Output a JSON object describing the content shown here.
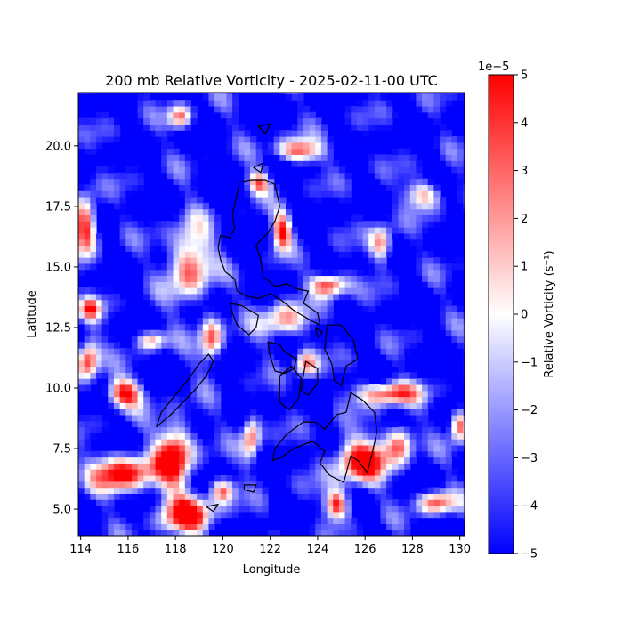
{
  "title": "200 mb Relative Vorticity - 2025-02-11-00 UTC",
  "xlabel": "Longitude",
  "ylabel": "Latitude",
  "x_ticks": [
    114,
    116,
    118,
    120,
    122,
    124,
    126,
    128,
    130
  ],
  "y_ticks": [
    5.0,
    7.5,
    10.0,
    12.5,
    15.0,
    17.5,
    20.0
  ],
  "x_tick_labels": [
    "114",
    "116",
    "118",
    "120",
    "122",
    "124",
    "126",
    "128",
    "130"
  ],
  "y_tick_labels": [
    "5.0",
    "7.5",
    "10.0",
    "12.5",
    "15.0",
    "17.5",
    "20.0"
  ],
  "colorbar": {
    "label": "Relative Vorticity (s⁻¹)",
    "offset_text": "1e−5",
    "ticks": [
      5,
      4,
      3,
      2,
      1,
      0,
      -1,
      -2,
      -3,
      -4,
      -5
    ],
    "tick_labels": [
      "5",
      "4",
      "3",
      "2",
      "1",
      "0",
      "−1",
      "−2",
      "−3",
      "−4",
      "−5"
    ],
    "range": [
      -5,
      5
    ],
    "colormap": "bwr",
    "colors": {
      "low": "#0000ff",
      "mid": "#ffffff",
      "high": "#ff0000"
    }
  },
  "map": {
    "lon_range": [
      113.9,
      130.2
    ],
    "lat_range": [
      3.9,
      22.2
    ],
    "coastline_color": "#000000",
    "field_features": [
      {
        "lon": 118.6,
        "lat": 15.2,
        "sx": 0.9,
        "sy": 1.6,
        "value": 3.5
      },
      {
        "lon": 125.8,
        "lat": 7.0,
        "sx": 1.2,
        "sy": 1.0,
        "value": 5.0
      },
      {
        "lon": 114.2,
        "lat": 16.8,
        "sx": 0.5,
        "sy": 1.2,
        "value": 5.0
      },
      {
        "lon": 114.3,
        "lat": 11.2,
        "sx": 0.5,
        "sy": 0.9,
        "value": 4.5
      },
      {
        "lon": 115.8,
        "lat": 9.8,
        "sx": 0.8,
        "sy": 0.6,
        "value": 4.5
      },
      {
        "lon": 118.0,
        "lat": 7.3,
        "sx": 0.8,
        "sy": 1.4,
        "value": 5.0
      },
      {
        "lon": 115.8,
        "lat": 6.5,
        "sx": 1.4,
        "sy": 0.8,
        "value": 5.0
      },
      {
        "lon": 118.5,
        "lat": 4.8,
        "sx": 1.2,
        "sy": 0.8,
        "value": 4.5
      },
      {
        "lon": 124.5,
        "lat": 14.3,
        "sx": 0.8,
        "sy": 0.5,
        "value": 5.0
      },
      {
        "lon": 122.5,
        "lat": 16.5,
        "sx": 0.4,
        "sy": 0.8,
        "value": 4.0
      },
      {
        "lon": 123.2,
        "lat": 19.8,
        "sx": 1.0,
        "sy": 0.5,
        "value": 3.0
      },
      {
        "lon": 127.0,
        "lat": 9.8,
        "sx": 1.3,
        "sy": 0.5,
        "value": 4.0
      },
      {
        "lon": 130.0,
        "lat": 8.5,
        "sx": 0.4,
        "sy": 0.7,
        "value": 3.5
      },
      {
        "lon": 122.5,
        "lat": 12.8,
        "sx": 1.0,
        "sy": 0.8,
        "value": 1.5
      },
      {
        "lon": 124.8,
        "lat": 5.2,
        "sx": 0.5,
        "sy": 0.6,
        "value": 4.5
      },
      {
        "lon": 129.0,
        "lat": 5.3,
        "sx": 0.8,
        "sy": 0.5,
        "value": 3.0
      },
      {
        "lon": 126.7,
        "lat": 16.0,
        "sx": 0.5,
        "sy": 0.8,
        "value": 2.5
      },
      {
        "lon": 119.5,
        "lat": 12.0,
        "sx": 0.5,
        "sy": 1.0,
        "value": 3.0
      },
      {
        "lon": 117.0,
        "lat": 12.0,
        "sx": 0.6,
        "sy": 0.4,
        "value": 2.0
      },
      {
        "lon": 121.2,
        "lat": 8.0,
        "sx": 0.4,
        "sy": 1.0,
        "value": 3.0
      },
      {
        "lon": 123.5,
        "lat": 11.0,
        "sx": 0.5,
        "sy": 0.6,
        "value": 2.0
      },
      {
        "lon": 127.5,
        "lat": 7.8,
        "sx": 0.6,
        "sy": 0.8,
        "value": 2.5
      },
      {
        "lon": 121.5,
        "lat": 18.5,
        "sx": 0.5,
        "sy": 0.5,
        "value": 2.0
      },
      {
        "lon": 118.2,
        "lat": 21.2,
        "sx": 0.5,
        "sy": 0.5,
        "value": 2.0
      },
      {
        "lon": 128.5,
        "lat": 18.0,
        "sx": 0.8,
        "sy": 0.6,
        "value": 1.5
      },
      {
        "lon": 114.4,
        "lat": 13.3,
        "sx": 0.5,
        "sy": 0.5,
        "value": 2.0
      },
      {
        "lon": 120.0,
        "lat": 5.8,
        "sx": 0.5,
        "sy": 0.5,
        "value": 2.5
      }
    ],
    "coastlines": [
      [
        [
          120.7,
          18.5
        ],
        [
          120.6,
          18.0
        ],
        [
          120.4,
          17.2
        ],
        [
          120.5,
          16.6
        ],
        [
          120.3,
          16.2
        ],
        [
          119.9,
          16.3
        ],
        [
          119.8,
          15.8
        ],
        [
          119.9,
          15.3
        ],
        [
          120.1,
          14.8
        ],
        [
          120.5,
          14.5
        ],
        [
          120.6,
          14.0
        ],
        [
          121.0,
          13.8
        ],
        [
          121.5,
          13.7
        ],
        [
          122.0,
          13.9
        ],
        [
          122.5,
          13.6
        ],
        [
          123.0,
          13.2
        ],
        [
          123.7,
          12.8
        ],
        [
          124.1,
          12.6
        ],
        [
          124.0,
          13.1
        ],
        [
          123.4,
          13.5
        ],
        [
          123.6,
          14.0
        ],
        [
          123.1,
          14.1
        ],
        [
          122.7,
          14.3
        ],
        [
          122.2,
          14.2
        ],
        [
          121.7,
          14.6
        ],
        [
          121.6,
          15.3
        ],
        [
          121.4,
          15.9
        ],
        [
          121.9,
          16.4
        ],
        [
          122.2,
          16.9
        ],
        [
          122.4,
          17.5
        ],
        [
          122.2,
          18.4
        ],
        [
          121.8,
          18.6
        ],
        [
          121.2,
          18.6
        ],
        [
          120.7,
          18.5
        ]
      ],
      [
        [
          120.3,
          13.5
        ],
        [
          120.8,
          13.4
        ],
        [
          121.5,
          13.0
        ],
        [
          121.4,
          12.5
        ],
        [
          121.1,
          12.2
        ],
        [
          120.6,
          12.6
        ],
        [
          120.4,
          13.1
        ],
        [
          120.3,
          13.5
        ]
      ],
      [
        [
          117.2,
          8.4
        ],
        [
          117.8,
          8.9
        ],
        [
          118.3,
          9.4
        ],
        [
          118.8,
          9.9
        ],
        [
          119.3,
          10.5
        ],
        [
          119.6,
          11.1
        ],
        [
          119.4,
          11.4
        ],
        [
          119.0,
          11.0
        ],
        [
          118.5,
          10.3
        ],
        [
          117.9,
          9.6
        ],
        [
          117.4,
          9.0
        ],
        [
          117.2,
          8.4
        ]
      ],
      [
        [
          121.9,
          11.9
        ],
        [
          122.4,
          11.8
        ],
        [
          122.6,
          11.5
        ],
        [
          123.1,
          11.2
        ],
        [
          123.0,
          10.8
        ],
        [
          122.6,
          10.6
        ],
        [
          122.2,
          10.7
        ],
        [
          122.0,
          11.3
        ],
        [
          121.9,
          11.9
        ]
      ],
      [
        [
          122.4,
          10.5
        ],
        [
          122.9,
          10.9
        ],
        [
          123.3,
          10.4
        ],
        [
          123.2,
          9.6
        ],
        [
          122.8,
          9.1
        ],
        [
          122.4,
          9.4
        ],
        [
          122.4,
          10.5
        ]
      ],
      [
        [
          123.5,
          11.1
        ],
        [
          124.0,
          10.8
        ],
        [
          124.0,
          10.2
        ],
        [
          123.6,
          9.7
        ],
        [
          123.3,
          9.9
        ],
        [
          123.5,
          11.1
        ]
      ],
      [
        [
          124.4,
          12.6
        ],
        [
          125.0,
          12.6
        ],
        [
          125.5,
          12.0
        ],
        [
          125.7,
          11.2
        ],
        [
          125.2,
          10.9
        ],
        [
          125.0,
          10.1
        ],
        [
          124.7,
          10.3
        ],
        [
          124.6,
          11.0
        ],
        [
          124.3,
          11.6
        ],
        [
          124.4,
          12.6
        ]
      ],
      [
        [
          125.4,
          9.8
        ],
        [
          125.9,
          9.5
        ],
        [
          126.4,
          9.0
        ],
        [
          126.5,
          8.2
        ],
        [
          126.3,
          7.3
        ],
        [
          126.1,
          6.5
        ],
        [
          125.7,
          7.0
        ],
        [
          125.4,
          7.2
        ],
        [
          125.1,
          6.1
        ],
        [
          124.5,
          6.4
        ],
        [
          124.1,
          6.9
        ],
        [
          124.3,
          7.4
        ],
        [
          123.8,
          7.8
        ],
        [
          123.5,
          7.7
        ],
        [
          123.0,
          7.5
        ],
        [
          122.4,
          7.1
        ],
        [
          122.1,
          7.0
        ],
        [
          122.2,
          7.5
        ],
        [
          122.7,
          8.1
        ],
        [
          123.4,
          8.6
        ],
        [
          123.9,
          8.6
        ],
        [
          124.3,
          8.3
        ],
        [
          124.8,
          8.9
        ],
        [
          125.2,
          9.0
        ],
        [
          125.4,
          9.8
        ]
      ],
      [
        [
          120.9,
          6.0
        ],
        [
          121.4,
          6.0
        ],
        [
          121.3,
          5.7
        ],
        [
          120.9,
          5.8
        ],
        [
          120.9,
          6.0
        ]
      ],
      [
        [
          119.3,
          5.1
        ],
        [
          119.8,
          5.2
        ],
        [
          119.6,
          4.9
        ],
        [
          119.3,
          5.1
        ]
      ],
      [
        [
          123.9,
          12.5
        ],
        [
          124.2,
          12.3
        ],
        [
          124.0,
          12.1
        ],
        [
          123.9,
          12.5
        ]
      ],
      [
        [
          121.5,
          20.8
        ],
        [
          122.0,
          20.9
        ],
        [
          121.8,
          20.5
        ],
        [
          121.5,
          20.8
        ]
      ],
      [
        [
          121.3,
          19.1
        ],
        [
          121.7,
          19.3
        ],
        [
          121.6,
          18.9
        ],
        [
          121.3,
          19.1
        ]
      ]
    ]
  }
}
